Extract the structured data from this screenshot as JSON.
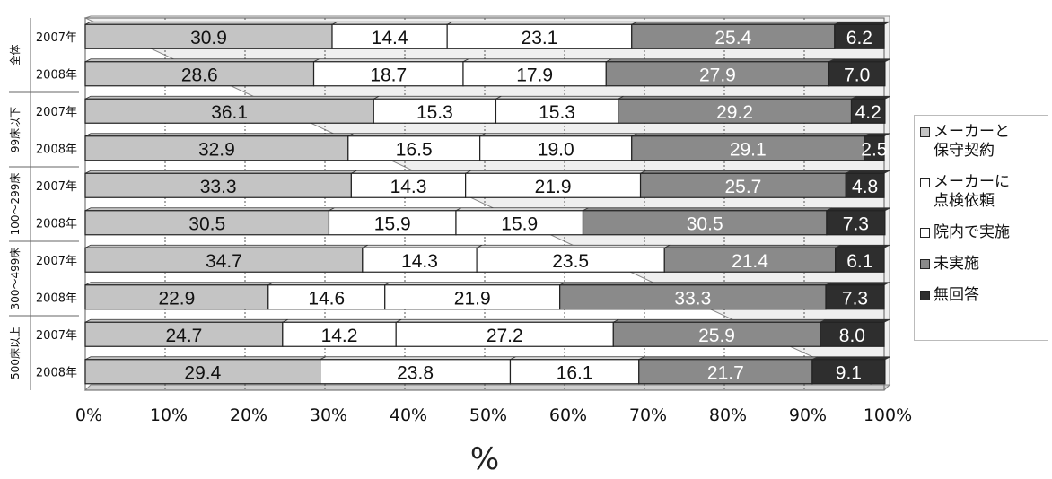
{
  "chart_data": {
    "type": "bar",
    "orientation": "horizontal",
    "stacked": "percent",
    "groups": [
      {
        "label": "全体",
        "rows": [
          "2007年",
          "2008年"
        ]
      },
      {
        "label": "99床以下",
        "rows": [
          "2007年",
          "2008年"
        ]
      },
      {
        "label": "100～299床",
        "rows": [
          "2007年",
          "2008年"
        ]
      },
      {
        "label": "300～499床",
        "rows": [
          "2007年",
          "2008年"
        ]
      },
      {
        "label": "500床以上",
        "rows": [
          "2007年",
          "2008年"
        ]
      }
    ],
    "series": [
      {
        "name": "メーカーと\n保守契約",
        "color": "#c4c4c4",
        "text_color": "#111111",
        "values": [
          30.9,
          28.6,
          36.1,
          32.9,
          33.3,
          30.5,
          34.7,
          22.9,
          24.7,
          29.4
        ]
      },
      {
        "name": "メーカーに\n点検依頼",
        "color": "#ffffff",
        "text_color": "#111111",
        "values": [
          14.4,
          18.7,
          15.3,
          16.5,
          14.3,
          15.9,
          14.3,
          14.6,
          14.2,
          23.8
        ]
      },
      {
        "name": "院内で実施",
        "color": "#ffffff",
        "text_color": "#111111",
        "values": [
          23.1,
          17.9,
          15.3,
          19.0,
          21.9,
          15.9,
          23.5,
          21.9,
          27.2,
          16.1
        ]
      },
      {
        "name": "未実施",
        "color": "#8a8a8a",
        "text_color": "#ffffff",
        "values": [
          25.4,
          27.9,
          29.2,
          29.1,
          25.7,
          30.5,
          21.4,
          33.3,
          25.9,
          21.7
        ]
      },
      {
        "name": "無回答",
        "color": "#2e2e2e",
        "text_color": "#ffffff",
        "values": [
          6.2,
          7.0,
          4.2,
          2.5,
          4.8,
          7.3,
          6.1,
          7.3,
          8.0,
          9.1
        ]
      }
    ],
    "x_ticks": [
      "0%",
      "10%",
      "20%",
      "30%",
      "40%",
      "50%",
      "60%",
      "70%",
      "80%",
      "90%",
      "100%"
    ],
    "xlim": [
      0,
      100
    ],
    "xlabel": "%",
    "grid": true,
    "legend_position": "right"
  }
}
